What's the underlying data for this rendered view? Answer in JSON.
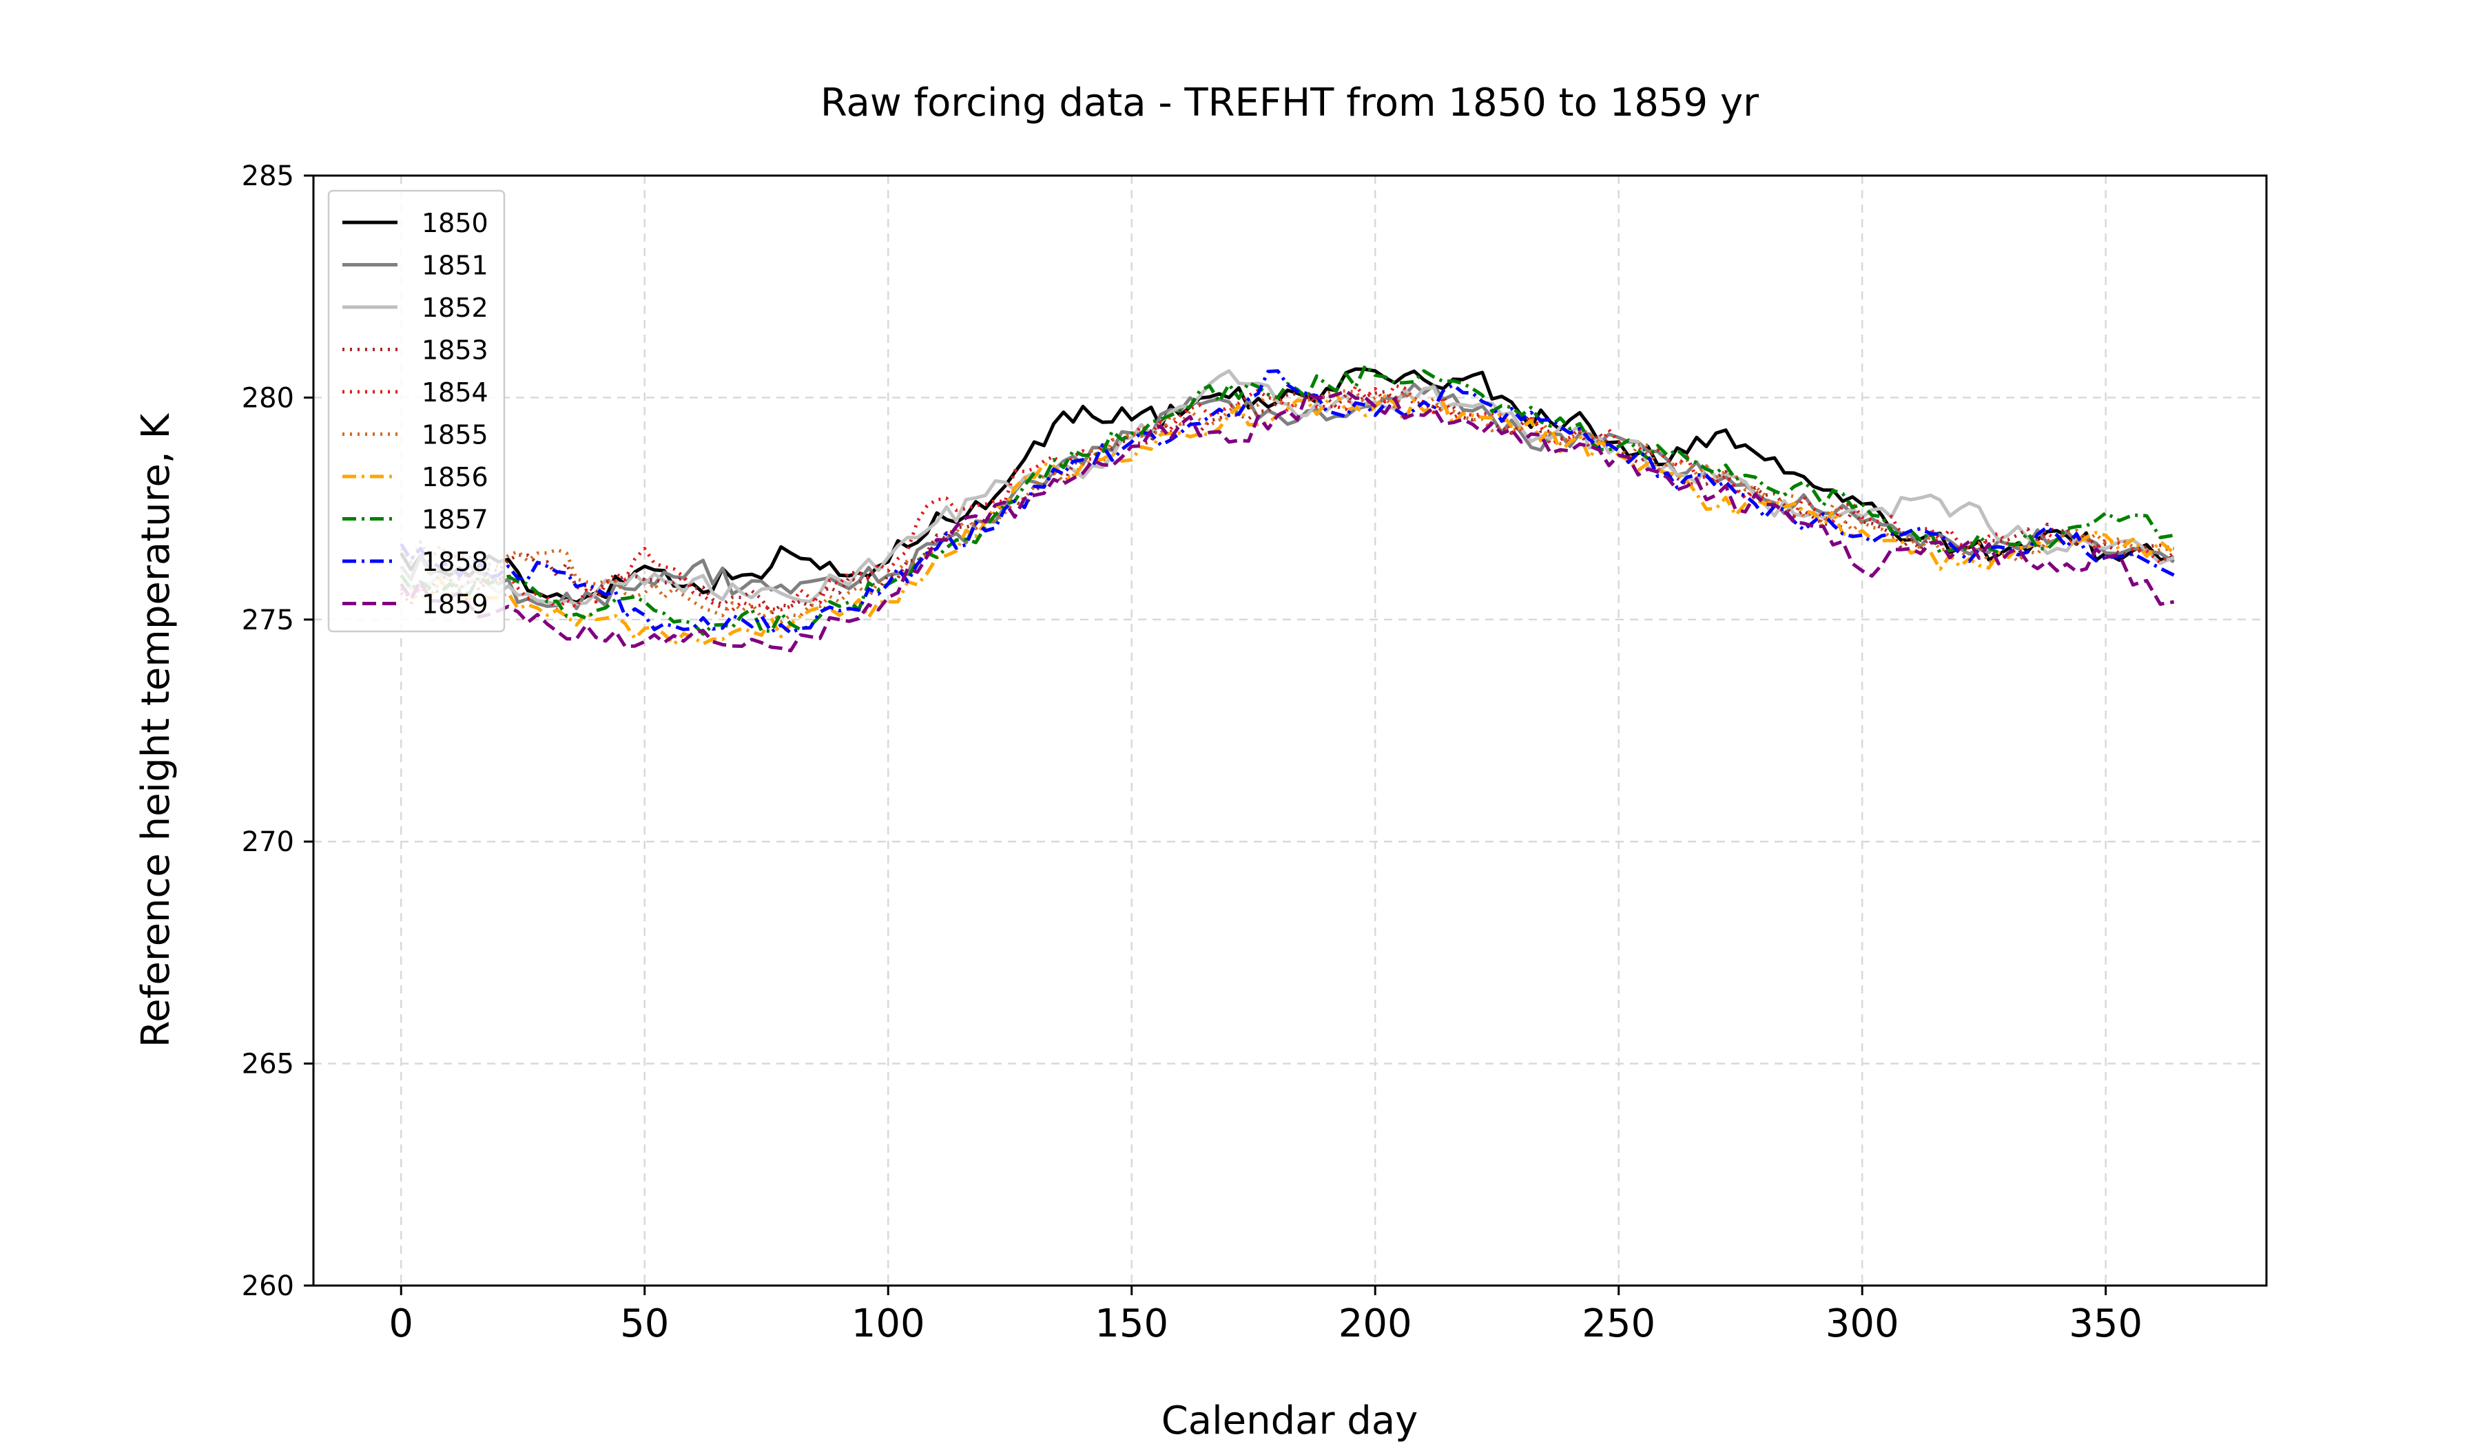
{
  "chart_data": {
    "type": "line",
    "title": "Raw forcing data - TREFHT from 1850 to 1859 yr",
    "xlabel": "Calendar day",
    "ylabel": "Reference height temperature, K",
    "xlim": [
      -18,
      383
    ],
    "ylim": [
      260,
      285
    ],
    "xticks": [
      0,
      50,
      100,
      150,
      200,
      250,
      300,
      350
    ],
    "yticks": [
      260,
      265,
      270,
      275,
      280,
      285
    ],
    "grid": true,
    "legend": "top-left",
    "x": [
      0,
      10,
      20,
      30,
      40,
      50,
      60,
      70,
      80,
      90,
      100,
      110,
      120,
      130,
      140,
      150,
      160,
      170,
      180,
      190,
      200,
      210,
      220,
      230,
      240,
      250,
      260,
      270,
      280,
      290,
      300,
      310,
      320,
      330,
      340,
      350,
      364
    ],
    "series": [
      {
        "name": "1850",
        "color": "#000000",
        "dash": "solid",
        "values": [
          276.5,
          276.0,
          276.3,
          275.5,
          275.6,
          276.2,
          275.8,
          276.0,
          276.5,
          276.0,
          276.3,
          277.4,
          277.5,
          279.0,
          279.8,
          279.5,
          279.6,
          280.0,
          279.9,
          280.2,
          280.6,
          280.4,
          280.5,
          279.6,
          279.5,
          279.0,
          278.5,
          279.2,
          278.6,
          278.0,
          277.6,
          276.8,
          276.6,
          276.6,
          277.0,
          276.5,
          276.4
        ]
      },
      {
        "name": "1851",
        "color": "#808080",
        "dash": "solid",
        "values": [
          276.2,
          276.1,
          275.8,
          275.3,
          275.5,
          275.9,
          276.2,
          275.7,
          275.6,
          275.8,
          276.0,
          276.7,
          277.2,
          278.1,
          278.5,
          279.2,
          279.7,
          279.9,
          279.6,
          279.5,
          279.8,
          280.1,
          279.7,
          279.2,
          278.9,
          279.1,
          278.6,
          278.1,
          277.7,
          277.5,
          277.2,
          276.9,
          276.6,
          276.7,
          276.8,
          276.5,
          276.3
        ]
      },
      {
        "name": "1852",
        "color": "#bfbfbf",
        "dash": "solid",
        "values": [
          276.0,
          275.9,
          275.6,
          275.4,
          275.6,
          275.8,
          275.9,
          275.6,
          275.5,
          275.9,
          276.4,
          277.2,
          277.8,
          278.3,
          278.2,
          279.1,
          279.8,
          280.6,
          279.9,
          279.7,
          279.9,
          280.2,
          279.8,
          279.3,
          279.2,
          278.9,
          278.5,
          278.2,
          277.6,
          277.4,
          277.3,
          277.7,
          277.5,
          276.9,
          276.6,
          276.6,
          276.4
        ]
      },
      {
        "name": "1853",
        "color": "#a52a2a",
        "dash": "dotted",
        "values": [
          275.7,
          275.9,
          276.1,
          276.3,
          275.6,
          275.9,
          275.7,
          275.5,
          275.3,
          275.6,
          276.0,
          276.9,
          277.2,
          277.9,
          278.6,
          279.0,
          279.4,
          279.6,
          279.9,
          280.0,
          280.1,
          279.9,
          279.5,
          279.4,
          279.0,
          278.9,
          278.3,
          278.2,
          277.8,
          277.3,
          277.2,
          276.8,
          276.6,
          276.8,
          276.9,
          276.7,
          276.6
        ]
      },
      {
        "name": "1854",
        "color": "#e31a1c",
        "dash": "dotted",
        "values": [
          275.6,
          275.7,
          275.9,
          275.5,
          275.4,
          276.6,
          275.6,
          275.4,
          275.3,
          275.8,
          276.1,
          277.7,
          277.6,
          278.4,
          278.8,
          279.1,
          279.6,
          279.8,
          280.0,
          279.8,
          280.2,
          279.9,
          279.6,
          279.3,
          279.1,
          279.0,
          278.6,
          278.1,
          277.7,
          277.5,
          277.3,
          277.0,
          276.7,
          276.7,
          276.8,
          276.8,
          276.5
        ]
      },
      {
        "name": "1855",
        "color": "#d2691e",
        "dash": "dotted",
        "values": [
          276.6,
          276.4,
          276.2,
          276.5,
          275.8,
          275.6,
          275.4,
          275.2,
          275.1,
          275.4,
          275.8,
          276.6,
          277.3,
          278.0,
          278.5,
          279.2,
          279.4,
          279.7,
          279.9,
          280.1,
          280.0,
          279.8,
          279.5,
          279.3,
          279.1,
          278.9,
          278.5,
          278.2,
          277.8,
          277.4,
          277.2,
          276.8,
          276.6,
          276.5,
          276.8,
          276.7,
          276.6
        ]
      },
      {
        "name": "1856",
        "color": "#ffa500",
        "dash": "dashdot",
        "values": [
          275.8,
          275.6,
          275.5,
          275.1,
          275.0,
          274.8,
          274.6,
          274.8,
          274.9,
          275.1,
          275.4,
          276.4,
          277.2,
          278.2,
          278.5,
          278.6,
          279.2,
          279.6,
          279.6,
          279.9,
          279.8,
          279.7,
          279.6,
          279.3,
          279.0,
          278.7,
          278.3,
          277.5,
          277.6,
          277.4,
          277.0,
          276.5,
          276.2,
          276.4,
          276.8,
          276.9,
          276.5
        ]
      },
      {
        "name": "1857",
        "color": "#008000",
        "dash": "dashdot",
        "values": [
          276.0,
          275.8,
          275.9,
          275.4,
          275.2,
          275.4,
          274.9,
          275.1,
          274.9,
          275.3,
          275.8,
          276.4,
          277.1,
          278.3,
          278.7,
          279.2,
          279.7,
          280.3,
          280.0,
          280.3,
          280.5,
          280.6,
          280.2,
          279.6,
          279.3,
          278.9,
          278.7,
          278.3,
          278.0,
          277.9,
          277.6,
          277.0,
          276.6,
          276.7,
          276.8,
          277.4,
          276.9
        ]
      },
      {
        "name": "1858",
        "color": "#0000ff",
        "dash": "dashdot",
        "values": [
          276.7,
          276.3,
          276.0,
          276.2,
          275.7,
          275.1,
          274.8,
          275.0,
          274.7,
          275.2,
          275.8,
          276.6,
          277.0,
          278.0,
          278.6,
          279.0,
          279.2,
          279.6,
          280.6,
          279.7,
          279.6,
          279.9,
          280.1,
          279.5,
          279.2,
          278.8,
          278.3,
          278.0,
          277.3,
          277.2,
          276.9,
          277.0,
          276.5,
          276.6,
          276.9,
          276.4,
          276.0
        ]
      },
      {
        "name": "1859",
        "color": "#800080",
        "dash": "dashed",
        "values": [
          275.8,
          275.5,
          275.2,
          274.9,
          274.6,
          274.5,
          274.7,
          274.4,
          274.3,
          275.0,
          275.5,
          276.8,
          277.2,
          277.8,
          278.3,
          278.9,
          279.4,
          279.0,
          279.6,
          280.0,
          279.8,
          279.6,
          279.4,
          279.0,
          278.8,
          278.7,
          278.2,
          277.8,
          277.6,
          277.1,
          276.1,
          276.6,
          276.6,
          276.5,
          276.1,
          276.4,
          275.4
        ]
      }
    ]
  }
}
